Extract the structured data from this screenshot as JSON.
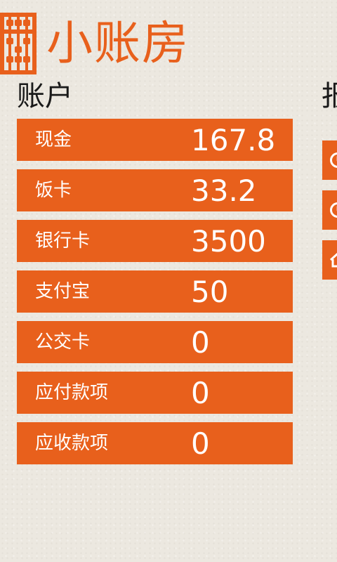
{
  "app": {
    "title": "小账房",
    "logo_icon": "abacus-icon"
  },
  "colors": {
    "accent": "#e8601c",
    "background": "#ece8e0",
    "text": "#1a1a1a",
    "tile_text": "#ffffff"
  },
  "accounts": {
    "title": "账户",
    "items": [
      {
        "name": "现金",
        "amount": "167.8"
      },
      {
        "name": "饭卡",
        "amount": "33.2"
      },
      {
        "name": "银行卡",
        "amount": "3500"
      },
      {
        "name": "支付宝",
        "amount": "50"
      },
      {
        "name": "公交卡",
        "amount": "0"
      },
      {
        "name": "应付款项",
        "amount": "0"
      },
      {
        "name": "应收款项",
        "amount": "0"
      }
    ]
  },
  "second_section": {
    "title": "报",
    "tiles": [
      {
        "icon": "clock-icon"
      },
      {
        "icon": "clock-icon"
      },
      {
        "icon": "house-icon"
      }
    ]
  }
}
